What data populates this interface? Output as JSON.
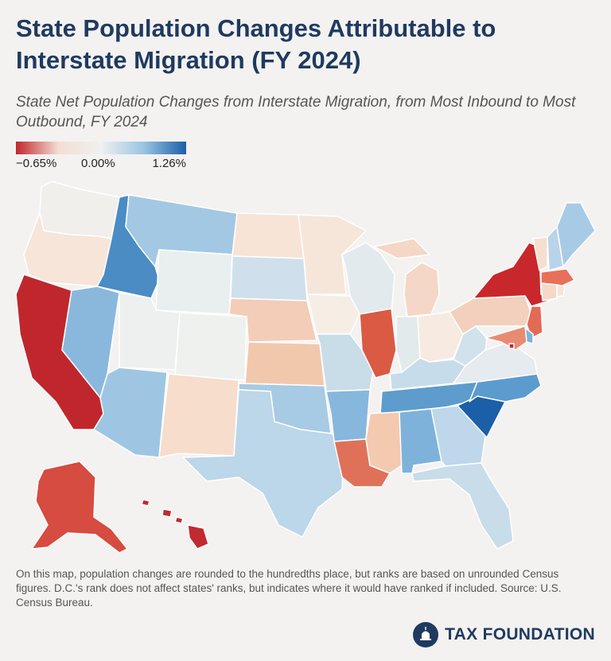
{
  "title": "State Population Changes Attributable to Interstate Migration (FY 2024)",
  "subtitle": "State Net Population Changes from Interstate Migration, from Most Inbound to Most Outbound, FY 2024",
  "legend": {
    "min_label": "−0.65%",
    "mid_label": "0.00%",
    "max_label": "1.26%",
    "min_value": -0.65,
    "max_value": 1.26,
    "colors": [
      "#c0272d",
      "#f4ddd3",
      "#f0f0f0",
      "#9bc4e2",
      "#1b5fa8"
    ]
  },
  "note": "On this map, population changes are rounded to the hundredths place, but ranks are based on unrounded Census figures. D.C.'s rank does not affect states' ranks, but indicates where it would have ranked if included. Source: U.S. Census Bureau.",
  "brand": "TAX FOUNDATION",
  "states": {
    "WA": "#f1efeb",
    "OR": "#f6e5d8",
    "CA": "#c0272d",
    "ID": "#4a8cc3",
    "NV": "#8ab8dd",
    "MT": "#a3c8e4",
    "WY": "#e9eeee",
    "UT": "#edf0ef",
    "AZ": "#9ec6e3",
    "CO": "#eff1ef",
    "NM": "#f6ddcc",
    "ND": "#f7e4d7",
    "SD": "#cfe0ec",
    "NE": "#f3cdb8",
    "KS": "#f2c8ad",
    "OK": "#a7cae5",
    "TX": "#bcd6ea",
    "MN": "#f6e6da",
    "IA": "#f6eee5",
    "MO": "#c9dde9",
    "AR": "#87b7dc",
    "LA": "#e07159",
    "WI": "#e3eaee",
    "IL": "#da5a44",
    "MI": "#f4d7c6",
    "IN": "#e2eaec",
    "OH": "#f7eae0",
    "KY": "#c7dcea",
    "TN": "#5d9ccc",
    "MS": "#f3c9b0",
    "AL": "#7fb2da",
    "GA": "#bed7ea",
    "FL": "#c8dcea",
    "SC": "#1b5fa8",
    "NC": "#5c9bce",
    "VA": "#e5ebee",
    "WV": "#d1e2ed",
    "PA": "#f3d0bd",
    "NY": "#c8282c",
    "VT": "#f5dfcf",
    "NH": "#b9d4e8",
    "ME": "#a8cbe5",
    "MA": "#e8705a",
    "CT": "#f4d8c8",
    "RI": "#f5e4d8",
    "NJ": "#e36a55",
    "DE": "#7fb2da",
    "MD": "#e98b73",
    "DC": "#c8282c",
    "AK": "#d64c40",
    "HI": "#c12a2f"
  }
}
